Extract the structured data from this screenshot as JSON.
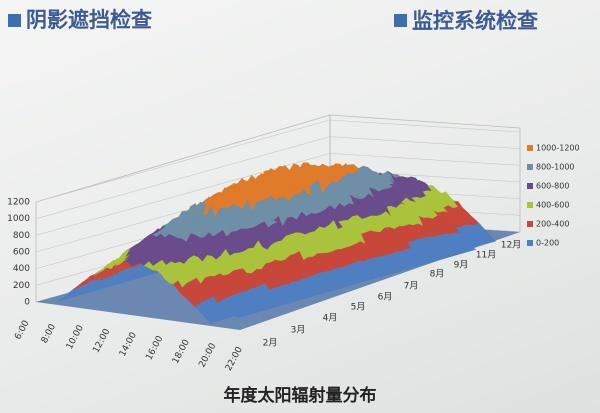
{
  "header": {
    "left": "阴影遮挡检查",
    "right": "监控系统检查"
  },
  "chart": {
    "title": "年度太阳辐射量分布",
    "value_axis": [
      0,
      200,
      400,
      600,
      800,
      1000,
      1200
    ],
    "time_axis": [
      "6:00",
      "8:00",
      "10:00",
      "12:00",
      "14:00",
      "16:00",
      "18:00",
      "20:00",
      "22:00"
    ],
    "month_axis": [
      "2月",
      "3月",
      "4月",
      "5月",
      "6月",
      "7月",
      "8月",
      "9月",
      "11月",
      "12月"
    ],
    "legend": [
      {
        "label": "1000-1200",
        "color": "#e07b2a"
      },
      {
        "label": "800-1000",
        "color": "#6f8fa6"
      },
      {
        "label": "600-800",
        "color": "#6a4b8c"
      },
      {
        "label": "400-600",
        "color": "#a9c43b"
      },
      {
        "label": "200-400",
        "color": "#c8473a"
      },
      {
        "label": "0-200",
        "color": "#4f7fc0"
      }
    ]
  }
}
